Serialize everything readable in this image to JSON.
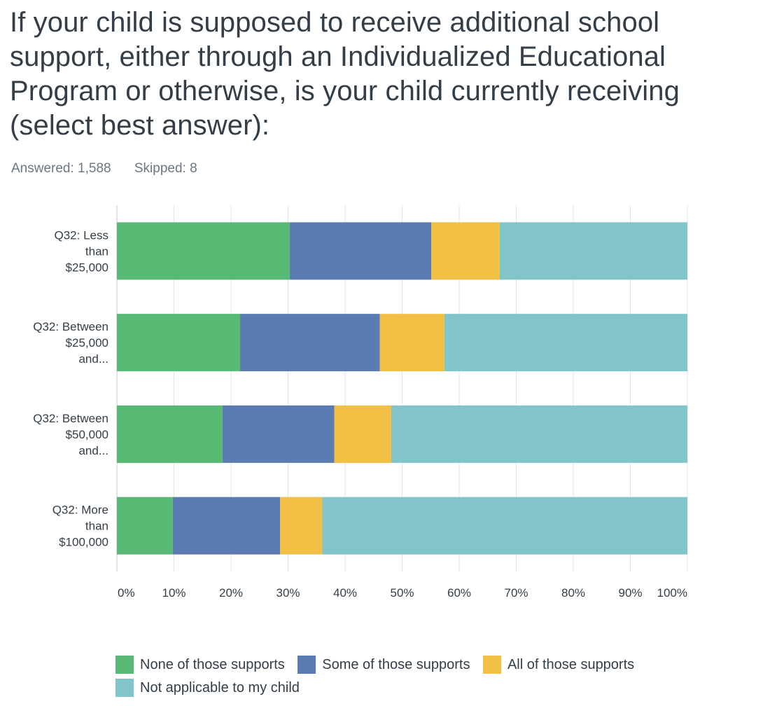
{
  "question": {
    "title": "If your child is supposed to receive additional school support, either through an Individualized Educational Program or otherwise, is your child currently receiving (select best answer):",
    "answered": "Answered: 1,588",
    "skipped": "Skipped: 8"
  },
  "colors": {
    "series": [
      "#57b973",
      "#5a7cb3",
      "#f1bf43",
      "#81c5ca"
    ],
    "grid": "#e3e3e3",
    "axis": "#c9c9c9"
  },
  "chart_data": {
    "type": "bar",
    "orientation": "horizontal",
    "stacked": true,
    "categories": [
      [
        "Q32: Less",
        "than",
        "$25,000"
      ],
      [
        "Q32: Between",
        "$25,000",
        "and..."
      ],
      [
        "Q32: Between",
        "$50,000",
        "and..."
      ],
      [
        "Q32: More",
        "than",
        "$100,000"
      ]
    ],
    "series": [
      {
        "name": "None of those supports",
        "values": [
          30.3,
          21.6,
          18.5,
          9.8
        ]
      },
      {
        "name": "Some of those supports",
        "values": [
          24.8,
          24.5,
          19.6,
          18.8
        ]
      },
      {
        "name": "All of those supports",
        "values": [
          12.0,
          11.3,
          10.0,
          7.4
        ]
      },
      {
        "name": "Not applicable to my child",
        "values": [
          32.9,
          42.6,
          51.9,
          64.0
        ]
      }
    ],
    "x_ticks": [
      "0%",
      "10%",
      "20%",
      "30%",
      "40%",
      "50%",
      "60%",
      "70%",
      "80%",
      "90%",
      "100%"
    ],
    "xlim": [
      0,
      100
    ],
    "grid": true,
    "legend_position": "bottom"
  }
}
